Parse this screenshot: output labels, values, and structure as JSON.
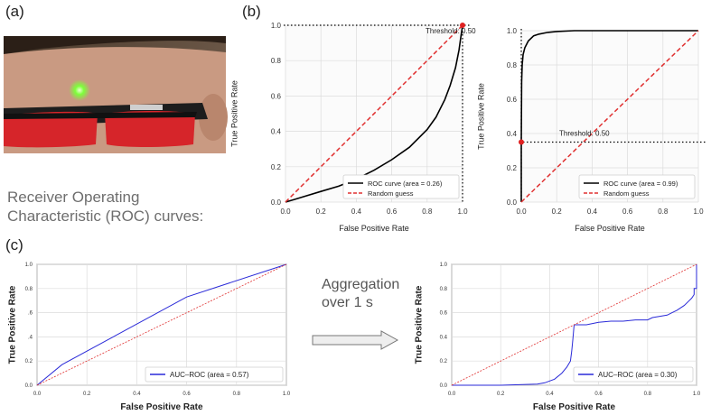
{
  "panels": {
    "a": "(a)",
    "b": "(b)",
    "c": "(c)"
  },
  "caption_lines": [
    "Receiver Operating",
    "Characteristic (ROC) curves:"
  ],
  "aggregation_lines": [
    "Aggregation",
    "over 1 s"
  ],
  "chart_data": [
    {
      "id": "b-left",
      "type": "line",
      "xlabel": "False Positive Rate",
      "ylabel": "True Positive Rate",
      "xlim": [
        0,
        1
      ],
      "ylim": [
        0,
        1
      ],
      "grid": true,
      "legend_position": "bottom-right",
      "x_ticks": [
        "0.0",
        "0.2",
        "0.4",
        "0.6",
        "0.8",
        "1.0"
      ],
      "y_ticks": [
        "0.0",
        "0.2",
        "0.4",
        "0.6",
        "0.8",
        "1.0"
      ],
      "series": [
        {
          "name": "ROC curve (area = 0.26)",
          "color": "#000000",
          "style": "solid",
          "x": [
            0,
            0.05,
            0.1,
            0.2,
            0.3,
            0.4,
            0.5,
            0.6,
            0.7,
            0.8,
            0.85,
            0.9,
            0.93,
            0.96,
            0.98,
            0.99,
            1.0
          ],
          "y": [
            0,
            0.015,
            0.03,
            0.06,
            0.09,
            0.13,
            0.18,
            0.24,
            0.31,
            0.41,
            0.48,
            0.58,
            0.66,
            0.76,
            0.86,
            0.93,
            1.0
          ]
        },
        {
          "name": "Random guess",
          "color": "#e03030",
          "style": "dashed",
          "x": [
            0,
            1
          ],
          "y": [
            0,
            1
          ]
        }
      ],
      "annotation": {
        "text": "Threshold: 0.50",
        "x": 1.0,
        "y": 1.0
      }
    },
    {
      "id": "b-right",
      "type": "line",
      "xlabel": "False Positive Rate",
      "ylabel": "True Positive Rate",
      "xlim": [
        0,
        1
      ],
      "ylim": [
        0,
        1
      ],
      "grid": true,
      "legend_position": "bottom-right",
      "x_ticks": [
        "0.0",
        "0.2",
        "0.4",
        "0.6",
        "0.8",
        "1.0"
      ],
      "y_ticks": [
        "0.0",
        "0.2",
        "0.4",
        "0.6",
        "0.8",
        "1.0"
      ],
      "series": [
        {
          "name": "ROC curve (area = 0.99)",
          "color": "#000000",
          "style": "solid",
          "x": [
            0,
            0,
            0.002,
            0.005,
            0.01,
            0.02,
            0.04,
            0.07,
            0.1,
            0.15,
            0.2,
            0.3,
            0.5,
            1.0
          ],
          "y": [
            0,
            0.35,
            0.7,
            0.8,
            0.86,
            0.9,
            0.94,
            0.97,
            0.98,
            0.99,
            0.995,
            1.0,
            1.0,
            1.0
          ]
        },
        {
          "name": "Random guess",
          "color": "#e03030",
          "style": "dashed",
          "x": [
            0,
            1
          ],
          "y": [
            0,
            1
          ]
        }
      ],
      "annotation": {
        "text": "Threshold: 0.50",
        "x": 0.0,
        "y": 0.35
      }
    },
    {
      "id": "c-left",
      "type": "line",
      "xlabel": "False Positive Rate",
      "ylabel": "True Positive Rate",
      "xlim": [
        0,
        1
      ],
      "ylim": [
        0,
        1
      ],
      "grid": true,
      "legend_position": "bottom-right",
      "x_ticks": [
        "0.0",
        "0.2",
        "0.4",
        "0.6",
        "0.8",
        "1.0"
      ],
      "y_ticks": [
        "0.0",
        "0.2",
        ".4",
        ".6",
        "0.8",
        "1.0"
      ],
      "series": [
        {
          "name": "AUC–ROC (area = 0.57)",
          "color": "#2a2ad8",
          "style": "solid",
          "x": [
            0,
            0.1,
            0.6,
            1.0
          ],
          "y": [
            0,
            0.17,
            0.73,
            1.0
          ]
        },
        {
          "name": "",
          "color": "#e03030",
          "style": "dashed",
          "x": [
            0,
            1
          ],
          "y": [
            0,
            1
          ]
        }
      ]
    },
    {
      "id": "c-right",
      "type": "line",
      "xlabel": "False Positive Rate",
      "ylabel": "True Positive Rate",
      "xlim": [
        0,
        1
      ],
      "ylim": [
        0,
        1
      ],
      "grid": true,
      "legend_position": "bottom-right",
      "x_ticks": [
        "0.0",
        "0.2",
        "0.4",
        "0.6",
        "0.8",
        "1.0"
      ],
      "y_ticks": [
        "0.0",
        "0.2",
        "0.4",
        "0.6",
        "0.8",
        "1.0"
      ],
      "series": [
        {
          "name": "AUC–ROC (area = 0.30)",
          "color": "#2a2ad8",
          "style": "solid",
          "x": [
            0,
            0.2,
            0.35,
            0.38,
            0.42,
            0.45,
            0.47,
            0.485,
            0.49,
            0.495,
            0.5,
            0.55,
            0.6,
            0.65,
            0.7,
            0.75,
            0.8,
            0.82,
            0.85,
            0.88,
            0.9,
            0.92,
            0.95,
            0.97,
            0.98,
            0.99,
            0.99,
            1.0,
            1.0
          ],
          "y": [
            0,
            0.0,
            0.01,
            0.02,
            0.05,
            0.1,
            0.15,
            0.2,
            0.28,
            0.38,
            0.5,
            0.5,
            0.52,
            0.53,
            0.53,
            0.54,
            0.54,
            0.56,
            0.57,
            0.58,
            0.6,
            0.62,
            0.66,
            0.7,
            0.72,
            0.75,
            0.8,
            0.8,
            1.0
          ]
        },
        {
          "name": "",
          "color": "#e03030",
          "style": "dashed",
          "x": [
            0,
            1
          ],
          "y": [
            0,
            1
          ]
        }
      ]
    }
  ]
}
